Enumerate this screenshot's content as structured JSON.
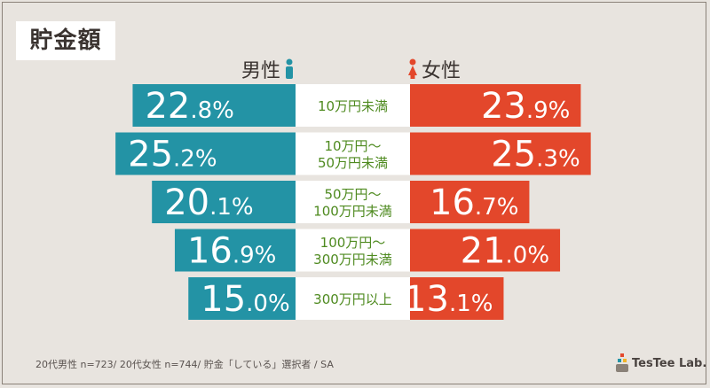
{
  "title": "貯金額",
  "legend": {
    "male": "男性",
    "female": "女性"
  },
  "colors": {
    "male": "#2393a5",
    "female": "#e3472b",
    "category_text": "#4e8a1f",
    "background": "#e8e4df"
  },
  "chart_data": {
    "type": "bar",
    "orientation": "horizontal-butterfly",
    "categories": [
      [
        "10万円未満"
      ],
      [
        "10万円～",
        "50万円未満"
      ],
      [
        "50万円～",
        "100万円未満"
      ],
      [
        "100万円～",
        "300万円未満"
      ],
      [
        "300万円以上"
      ]
    ],
    "series": [
      {
        "name": "男性",
        "values": [
          22.8,
          25.2,
          20.1,
          16.9,
          15.0
        ],
        "side": "left"
      },
      {
        "name": "女性",
        "values": [
          23.9,
          25.3,
          16.7,
          21.0,
          13.1
        ],
        "side": "right"
      }
    ],
    "value_suffix": "%"
  },
  "footnote": "20代男性 n=723/ 20代女性 n=744/ 貯金「している」選択者 / SA",
  "brand": "TesTee Lab."
}
